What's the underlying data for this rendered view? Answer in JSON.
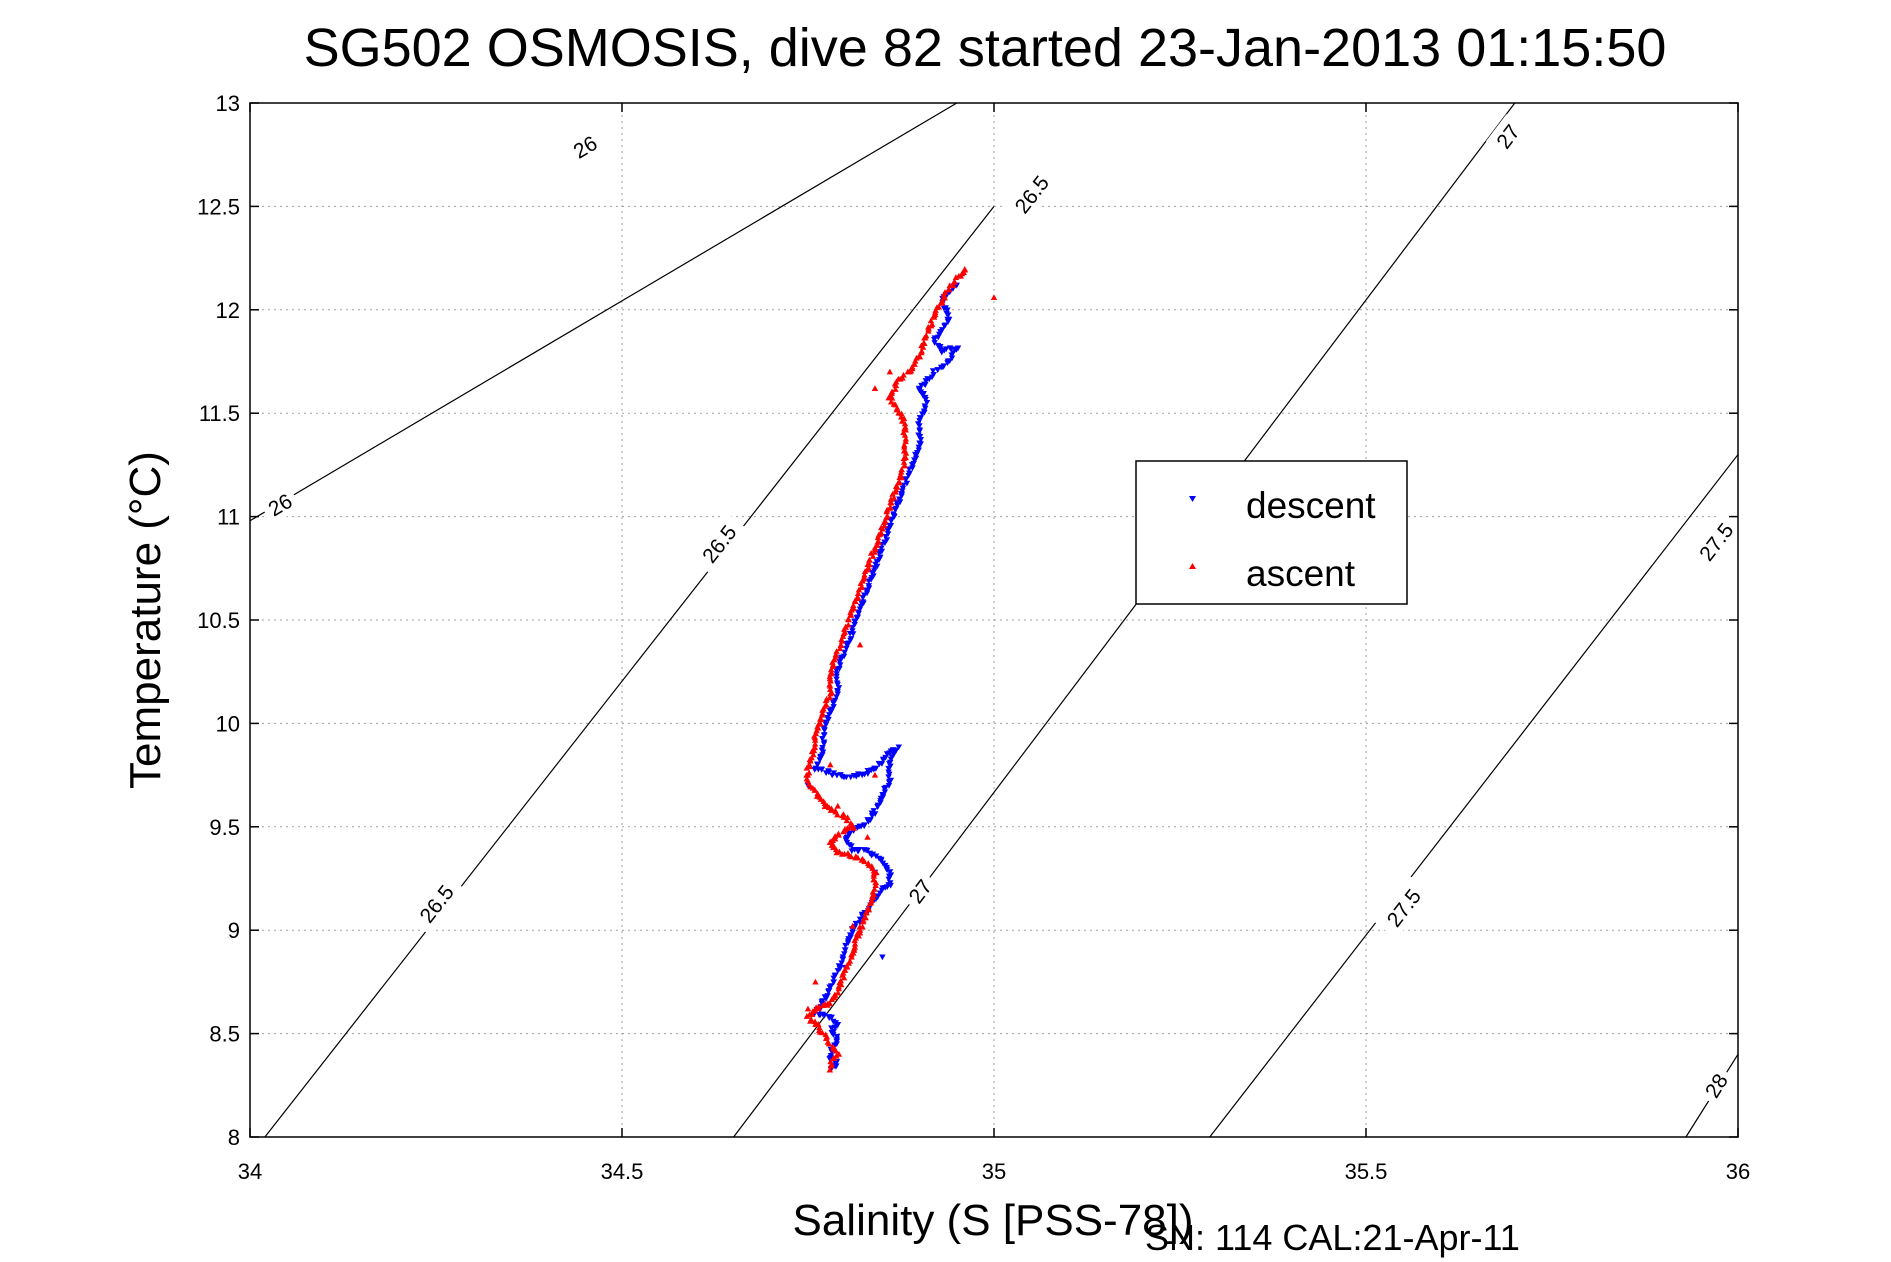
{
  "colors": {
    "descent": "#0000ff",
    "ascent": "#ff0000",
    "axis": "#000000",
    "grid": "#a0a0a0",
    "contour": "#000000",
    "background": "#ffffff"
  },
  "chart_data": {
    "type": "scatter",
    "title": "SG502 OSMOSIS, dive 82 started 23-Jan-2013 01:15:50",
    "xlabel": "Salinity (S [PSS-78])",
    "ylabel": "Temperature (°C)",
    "footer": "SN: 114  CAL:21-Apr-11",
    "xlim": [
      34,
      36
    ],
    "ylim": [
      8,
      13
    ],
    "xticks": [
      "34",
      "34.5",
      "35",
      "35.5",
      "36"
    ],
    "yticks": [
      "8",
      "8.5",
      "9",
      "9.5",
      "10",
      "10.5",
      "11",
      "11.5",
      "12",
      "12.5",
      "13"
    ],
    "grid": true,
    "grid_style": "dotted",
    "legend_position": "right-center",
    "contours": [
      {
        "sigma": "26",
        "line": [
          [
            34.0,
            10.98
          ],
          [
            34.95,
            13.0
          ]
        ],
        "labels": [
          [
            34.04,
            11.06
          ],
          [
            34.45,
            12.79
          ]
        ]
      },
      {
        "sigma": "26.5",
        "line": [
          [
            34.02,
            8.0
          ],
          [
            35.0,
            12.5
          ]
        ],
        "labels": [
          [
            34.25,
            9.13
          ],
          [
            34.63,
            10.87
          ],
          [
            35.05,
            12.56
          ]
        ]
      },
      {
        "sigma": "27",
        "line": [
          [
            34.65,
            8.0
          ],
          [
            35.7,
            13.0
          ]
        ],
        "labels": [
          [
            34.9,
            9.19
          ],
          [
            35.69,
            12.84
          ]
        ]
      },
      {
        "sigma": "27.5",
        "line": [
          [
            35.29,
            8.0
          ],
          [
            36.0,
            11.3
          ]
        ],
        "labels": [
          [
            35.55,
            9.11
          ],
          [
            35.97,
            10.88
          ]
        ]
      },
      {
        "sigma": "28",
        "line": [
          [
            35.93,
            8.0
          ],
          [
            36.0,
            8.4
          ]
        ],
        "labels": [
          [
            35.97,
            8.25
          ]
        ]
      }
    ],
    "series": [
      {
        "name": "descent",
        "marker": "triangle-down",
        "path": [
          [
            34.95,
            12.12
          ],
          [
            34.93,
            12.05
          ],
          [
            34.94,
            11.95
          ],
          [
            34.92,
            11.85
          ],
          [
            34.93,
            11.8
          ],
          [
            34.95,
            11.82
          ],
          [
            34.94,
            11.75
          ],
          [
            34.92,
            11.7
          ],
          [
            34.91,
            11.65
          ],
          [
            34.9,
            11.62
          ],
          [
            34.91,
            11.55
          ],
          [
            34.9,
            11.45
          ],
          [
            34.9,
            11.35
          ],
          [
            34.89,
            11.25
          ],
          [
            34.88,
            11.15
          ],
          [
            34.87,
            11.05
          ],
          [
            34.86,
            10.95
          ],
          [
            34.85,
            10.85
          ],
          [
            34.84,
            10.75
          ],
          [
            34.83,
            10.65
          ],
          [
            34.82,
            10.55
          ],
          [
            34.81,
            10.45
          ],
          [
            34.8,
            10.35
          ],
          [
            34.79,
            10.25
          ],
          [
            34.79,
            10.15
          ],
          [
            34.78,
            10.05
          ],
          [
            34.77,
            9.95
          ],
          [
            34.77,
            9.85
          ],
          [
            34.76,
            9.78
          ],
          [
            34.78,
            9.76
          ],
          [
            34.8,
            9.74
          ],
          [
            34.82,
            9.75
          ],
          [
            34.84,
            9.78
          ],
          [
            34.85,
            9.82
          ],
          [
            34.86,
            9.87
          ],
          [
            34.87,
            9.88
          ],
          [
            34.86,
            9.8
          ],
          [
            34.86,
            9.72
          ],
          [
            34.85,
            9.65
          ],
          [
            34.84,
            9.58
          ],
          [
            34.83,
            9.52
          ],
          [
            34.81,
            9.48
          ],
          [
            34.8,
            9.44
          ],
          [
            34.81,
            9.39
          ],
          [
            34.83,
            9.38
          ],
          [
            34.85,
            9.34
          ],
          [
            34.86,
            9.28
          ],
          [
            34.86,
            9.22
          ],
          [
            34.85,
            9.2
          ],
          [
            34.83,
            9.1
          ],
          [
            34.81,
            9.0
          ],
          [
            34.8,
            8.9
          ],
          [
            34.79,
            8.8
          ],
          [
            34.78,
            8.72
          ],
          [
            34.77,
            8.65
          ],
          [
            34.76,
            8.6
          ],
          [
            34.78,
            8.58
          ],
          [
            34.79,
            8.55
          ],
          [
            34.78,
            8.52
          ],
          [
            34.79,
            8.48
          ],
          [
            34.79,
            8.45
          ],
          [
            34.78,
            8.42
          ],
          [
            34.78,
            8.38
          ],
          [
            34.79,
            8.35
          ],
          [
            34.78,
            8.33
          ]
        ],
        "extras": [
          [
            34.85,
            8.87
          ],
          [
            34.8,
            8.82
          ],
          [
            34.75,
            9.7
          ],
          [
            34.84,
            9.28
          ]
        ]
      },
      {
        "name": "ascent",
        "marker": "triangle-up",
        "path": [
          [
            34.78,
            8.33
          ],
          [
            34.78,
            8.36
          ],
          [
            34.79,
            8.4
          ],
          [
            34.78,
            8.45
          ],
          [
            34.77,
            8.5
          ],
          [
            34.76,
            8.55
          ],
          [
            34.75,
            8.58
          ],
          [
            34.76,
            8.62
          ],
          [
            34.78,
            8.65
          ],
          [
            34.79,
            8.7
          ],
          [
            34.8,
            8.8
          ],
          [
            34.81,
            8.9
          ],
          [
            34.82,
            9.0
          ],
          [
            34.83,
            9.1
          ],
          [
            34.84,
            9.2
          ],
          [
            34.84,
            9.28
          ],
          [
            34.83,
            9.33
          ],
          [
            34.81,
            9.36
          ],
          [
            34.79,
            9.38
          ],
          [
            34.78,
            9.42
          ],
          [
            34.79,
            9.46
          ],
          [
            34.81,
            9.5
          ],
          [
            34.8,
            9.55
          ],
          [
            34.78,
            9.58
          ],
          [
            34.77,
            9.62
          ],
          [
            34.76,
            9.67
          ],
          [
            34.75,
            9.72
          ],
          [
            34.75,
            9.8
          ],
          [
            34.76,
            9.88
          ],
          [
            34.76,
            9.95
          ],
          [
            34.77,
            10.05
          ],
          [
            34.78,
            10.15
          ],
          [
            34.78,
            10.25
          ],
          [
            34.79,
            10.35
          ],
          [
            34.8,
            10.45
          ],
          [
            34.81,
            10.55
          ],
          [
            34.82,
            10.65
          ],
          [
            34.83,
            10.75
          ],
          [
            34.84,
            10.85
          ],
          [
            34.85,
            10.95
          ],
          [
            34.86,
            11.05
          ],
          [
            34.87,
            11.15
          ],
          [
            34.88,
            11.25
          ],
          [
            34.88,
            11.35
          ],
          [
            34.88,
            11.45
          ],
          [
            34.87,
            11.52
          ],
          [
            34.86,
            11.58
          ],
          [
            34.87,
            11.65
          ],
          [
            34.89,
            11.72
          ],
          [
            34.9,
            11.78
          ],
          [
            34.91,
            11.88
          ],
          [
            34.92,
            11.98
          ],
          [
            34.93,
            12.05
          ],
          [
            34.94,
            12.1
          ],
          [
            34.95,
            12.15
          ],
          [
            34.96,
            12.18
          ],
          [
            34.96,
            12.2
          ]
        ],
        "extras": [
          [
            35.0,
            12.06
          ],
          [
            34.84,
            11.62
          ],
          [
            34.86,
            11.7
          ],
          [
            34.82,
            10.38
          ],
          [
            34.79,
            9.6
          ],
          [
            34.76,
            8.75
          ],
          [
            34.75,
            8.62
          ],
          [
            34.81,
            9.02
          ],
          [
            34.83,
            9.45
          ],
          [
            34.84,
            9.75
          ],
          [
            34.78,
            9.8
          ]
        ]
      }
    ]
  }
}
